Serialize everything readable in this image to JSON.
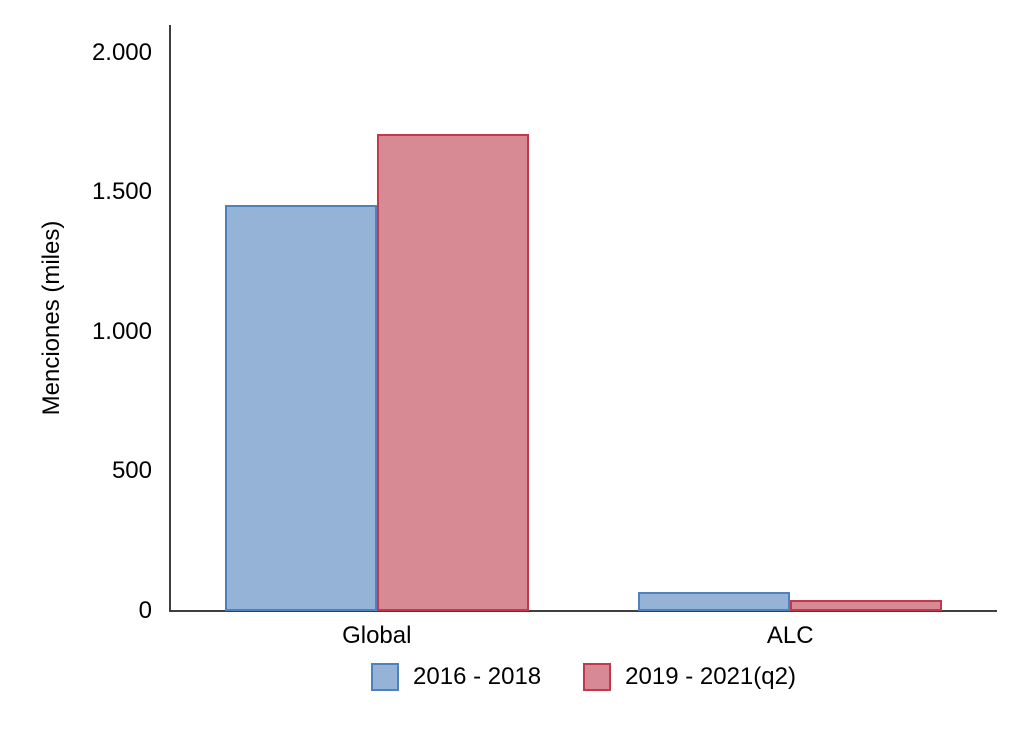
{
  "chart_data": {
    "type": "bar",
    "title": "",
    "xlabel": "",
    "ylabel": "Menciones (miles)",
    "categories": [
      "Global",
      "ALC"
    ],
    "series": [
      {
        "name": "2016 - 2018",
        "fill": "#94B3D7",
        "stroke": "#4F81BD",
        "values": [
          1455,
          68
        ]
      },
      {
        "name": "2019 - 2021(q2)",
        "fill": "#D88A94",
        "stroke": "#C2394B",
        "values": [
          1710,
          40
        ]
      }
    ],
    "y_ticks": [
      {
        "value": 0,
        "label": "0"
      },
      {
        "value": 500,
        "label": "500"
      },
      {
        "value": 1000,
        "label": "1.000"
      },
      {
        "value": 1500,
        "label": "1.500"
      },
      {
        "value": 2000,
        "label": "2.000"
      }
    ],
    "ylim": [
      0,
      2100
    ],
    "grid": false,
    "legend_position": "bottom"
  },
  "colors": {
    "axis": "#3F3F3F",
    "text": "#000000",
    "background": "#FFFFFF"
  }
}
